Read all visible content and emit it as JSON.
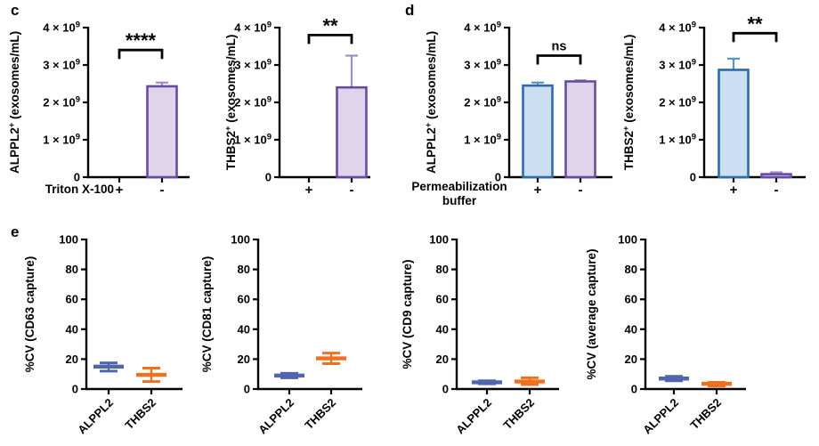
{
  "panels": {
    "c": "c",
    "d": "d",
    "e": "e"
  },
  "chart_data": [
    {
      "id": "c-alppl2-triton",
      "type": "bar",
      "panel": "c",
      "ylabel": {
        "pre": "ALPPL2",
        "sup": "+",
        "post": " (exosomes/mL)"
      },
      "ylim": [
        0,
        4000000000.0
      ],
      "yticks": [
        {
          "v": 0,
          "label": "0"
        },
        {
          "v": 1000000000.0,
          "label": "1 × 10",
          "sup": "9"
        },
        {
          "v": 2000000000.0,
          "label": "2 × 10",
          "sup": "9"
        },
        {
          "v": 3000000000.0,
          "label": "3 × 10",
          "sup": "9"
        },
        {
          "v": 4000000000.0,
          "label": "4 × 10",
          "sup": "9"
        }
      ],
      "categories": [
        "+",
        "-"
      ],
      "xprefix": [
        "Triton X-100"
      ],
      "bars": [
        {
          "category": "+",
          "value": 0,
          "error": 0,
          "fill": "#ded4eb",
          "stroke": "#6a4aa0",
          "error_color": "#a18cc9"
        },
        {
          "category": "-",
          "value": 2430000000.0,
          "error": 100000000.0,
          "fill": "#ded4eb",
          "stroke": "#6a4aa0",
          "error_color": "#a18cc9"
        }
      ],
      "significance": {
        "label": "****",
        "y": 3400000000.0
      }
    },
    {
      "id": "c-thbs2-triton",
      "type": "bar",
      "panel": "c",
      "ylabel": {
        "pre": "THBS2",
        "sup": "+",
        "post": " (exosomes/mL)"
      },
      "ylim": [
        0,
        4000000000.0
      ],
      "yticks": [
        {
          "v": 0,
          "label": "0"
        },
        {
          "v": 1000000000.0,
          "label": "1 × 10",
          "sup": "9"
        },
        {
          "v": 2000000000.0,
          "label": "2 × 10",
          "sup": "9"
        },
        {
          "v": 3000000000.0,
          "label": "3 × 10",
          "sup": "9"
        },
        {
          "v": 4000000000.0,
          "label": "4 × 10",
          "sup": "9"
        }
      ],
      "categories": [
        "+",
        "-"
      ],
      "xprefix": [],
      "bars": [
        {
          "category": "+",
          "value": 0,
          "error": 0,
          "fill": "#ded4eb",
          "stroke": "#6a4aa0",
          "error_color": "#a18cc9"
        },
        {
          "category": "-",
          "value": 2400000000.0,
          "error": 850000000.0,
          "fill": "#ded4eb",
          "stroke": "#6a4aa0",
          "error_color": "#a18cc9"
        }
      ],
      "significance": {
        "label": "**",
        "y": 3800000000.0
      }
    },
    {
      "id": "d-alppl2-permeabilization",
      "type": "bar",
      "panel": "d",
      "ylabel": {
        "pre": "ALPPL2",
        "sup": "+",
        "post": " (exosomes/mL)"
      },
      "ylim": [
        0,
        4000000000.0
      ],
      "yticks": [
        {
          "v": 0,
          "label": "0"
        },
        {
          "v": 1000000000.0,
          "label": "1 × 10",
          "sup": "9"
        },
        {
          "v": 2000000000.0,
          "label": "2 × 10",
          "sup": "9"
        },
        {
          "v": 3000000000.0,
          "label": "3 × 10",
          "sup": "9"
        },
        {
          "v": 4000000000.0,
          "label": "4 × 10",
          "sup": "9"
        }
      ],
      "categories": [
        "+",
        "-"
      ],
      "xprefix": [
        "Permeabilization",
        "buffer"
      ],
      "bars": [
        {
          "category": "+",
          "value": 2450000000.0,
          "error": 80000000.0,
          "fill": "#cbdff2",
          "stroke": "#2e6ba6",
          "error_color": "#5d92c6"
        },
        {
          "category": "-",
          "value": 2560000000.0,
          "error": 30000000.0,
          "fill": "#ded4eb",
          "stroke": "#6a4aa0",
          "error_color": "#a18cc9"
        }
      ],
      "significance": {
        "label": "ns",
        "y": 3250000000.0
      }
    },
    {
      "id": "d-thbs2-permeabilization",
      "type": "bar",
      "panel": "d",
      "ylabel": {
        "pre": "THBS2",
        "sup": "+",
        "post": " (exosomes/mL)"
      },
      "ylim": [
        0,
        4000000000.0
      ],
      "yticks": [
        {
          "v": 0,
          "label": "0"
        },
        {
          "v": 1000000000.0,
          "label": "1 × 10",
          "sup": "9"
        },
        {
          "v": 2000000000.0,
          "label": "2 × 10",
          "sup": "9"
        },
        {
          "v": 3000000000.0,
          "label": "3 × 10",
          "sup": "9"
        },
        {
          "v": 4000000000.0,
          "label": "4 × 10",
          "sup": "9"
        }
      ],
      "categories": [
        "+",
        "-"
      ],
      "xprefix": [],
      "bars": [
        {
          "category": "+",
          "value": 2870000000.0,
          "error": 300000000.0,
          "fill": "#cbdff2",
          "stroke": "#2e6ba6",
          "error_color": "#5d92c6"
        },
        {
          "category": "-",
          "value": 80000000.0,
          "error": 50000000.0,
          "fill": "#ded4eb",
          "stroke": "#6a4aa0",
          "error_color": "#a18cc9"
        }
      ],
      "significance": {
        "label": "**",
        "y": 3850000000.0
      }
    },
    {
      "id": "e-cv-cd63",
      "type": "range",
      "panel": "e",
      "ylabel": {
        "pre": "%CV (CD63 capture)"
      },
      "ylim": [
        0,
        100
      ],
      "yticks": [
        {
          "v": 0,
          "label": "0"
        },
        {
          "v": 20,
          "label": "20"
        },
        {
          "v": 40,
          "label": "40"
        },
        {
          "v": 60,
          "label": "60"
        },
        {
          "v": 80,
          "label": "80"
        },
        {
          "v": 100,
          "label": "100"
        }
      ],
      "categories": [
        "ALPPL2",
        "THBS2"
      ],
      "points": [
        {
          "category": "ALPPL2",
          "mean": 15,
          "min": 12,
          "max": 17.5,
          "color": "#4f66ae"
        },
        {
          "category": "THBS2",
          "mean": 9.5,
          "min": 5,
          "max": 14,
          "color": "#f0701f"
        }
      ]
    },
    {
      "id": "e-cv-cd81",
      "type": "range",
      "panel": "e",
      "ylabel": {
        "pre": "%CV (CD81 capture)"
      },
      "ylim": [
        0,
        100
      ],
      "yticks": [
        {
          "v": 0,
          "label": "0"
        },
        {
          "v": 20,
          "label": "20"
        },
        {
          "v": 40,
          "label": "40"
        },
        {
          "v": 60,
          "label": "60"
        },
        {
          "v": 80,
          "label": "80"
        },
        {
          "v": 100,
          "label": "100"
        }
      ],
      "categories": [
        "ALPPL2",
        "THBS2"
      ],
      "points": [
        {
          "category": "ALPPL2",
          "mean": 9,
          "min": 7.5,
          "max": 10.5,
          "color": "#4f66ae"
        },
        {
          "category": "THBS2",
          "mean": 20.5,
          "min": 17,
          "max": 24,
          "color": "#f0701f"
        }
      ]
    },
    {
      "id": "e-cv-cd9",
      "type": "range",
      "panel": "e",
      "ylabel": {
        "pre": "%CV (CD9 capture)"
      },
      "ylim": [
        0,
        100
      ],
      "yticks": [
        {
          "v": 0,
          "label": "0"
        },
        {
          "v": 20,
          "label": "20"
        },
        {
          "v": 40,
          "label": "40"
        },
        {
          "v": 60,
          "label": "60"
        },
        {
          "v": 80,
          "label": "80"
        },
        {
          "v": 100,
          "label": "100"
        }
      ],
      "categories": [
        "ALPPL2",
        "THBS2"
      ],
      "points": [
        {
          "category": "ALPPL2",
          "mean": 4.5,
          "min": 3.5,
          "max": 5.5,
          "color": "#4f66ae"
        },
        {
          "category": "THBS2",
          "mean": 5,
          "min": 3,
          "max": 7.5,
          "color": "#f0701f"
        }
      ]
    },
    {
      "id": "e-cv-average",
      "type": "range",
      "panel": "e",
      "ylabel": {
        "pre": "%CV (average capture)"
      },
      "ylim": [
        0,
        100
      ],
      "yticks": [
        {
          "v": 0,
          "label": "0"
        },
        {
          "v": 20,
          "label": "20"
        },
        {
          "v": 40,
          "label": "40"
        },
        {
          "v": 60,
          "label": "60"
        },
        {
          "v": 80,
          "label": "80"
        },
        {
          "v": 100,
          "label": "100"
        }
      ],
      "categories": [
        "ALPPL2",
        "THBS2"
      ],
      "points": [
        {
          "category": "ALPPL2",
          "mean": 7,
          "min": 5.5,
          "max": 8.5,
          "color": "#4f66ae"
        },
        {
          "category": "THBS2",
          "mean": 3.5,
          "min": 2,
          "max": 4.5,
          "color": "#f0701f"
        }
      ]
    }
  ]
}
